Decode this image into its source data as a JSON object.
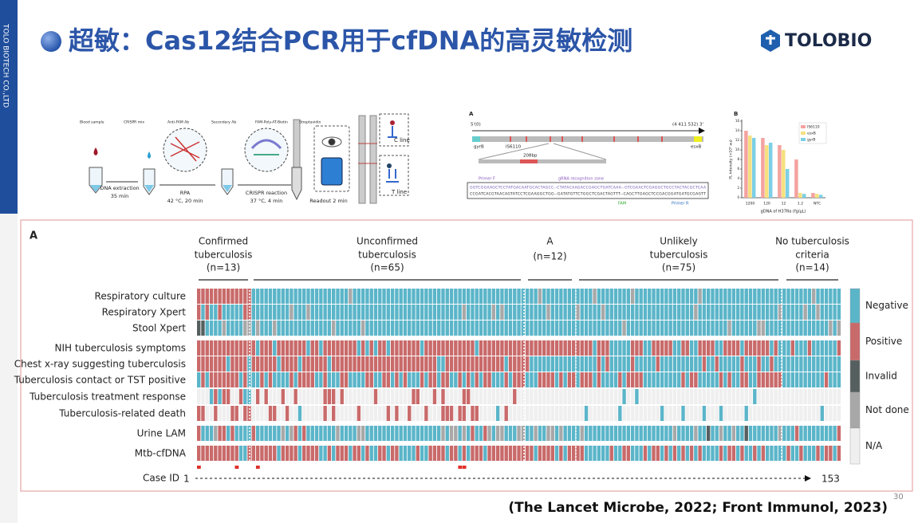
{
  "sidebar": "TOLO BIOTECH CO.,LTD",
  "title": "超敏：Cas12结合PCR用于cfDNA的高灵敏检测",
  "logo": "TOLOBIO",
  "page_number": "30",
  "citation": "(The Lancet Microbe, 2022; Front Immunol, 2023)",
  "workflow": {
    "legend": [
      "Blood sample",
      "CRISPR mix",
      "Anti-FAM Ab",
      "Secondary Ab",
      "FAM-Poly-AT-Biotin",
      "Streptavidin"
    ],
    "steps": [
      {
        "label": "DNA extraction",
        "detail": "35 min"
      },
      {
        "label": "RPA",
        "detail": "42 °C, 20 min"
      },
      {
        "label": "CRISPR reaction",
        "detail": "37 °C, 4 min"
      },
      {
        "label": "Readout 2 min"
      }
    ],
    "strip_labels": [
      "C line",
      "T line"
    ]
  },
  "genome": {
    "panel": "A",
    "start": "5'(0)",
    "end": "(4 411 532) 3'",
    "genes": [
      "gyrB",
      "IS6110",
      "esxB"
    ],
    "amplicon": "208bp",
    "primer_f": "Primer F",
    "zone": "gRNA recognition zone",
    "sequence": [
      "GGTCGGAAGCTCCTATGACAATGCACTAGCC--CTATACAAGACCGAGCTGATCAAA--GTCGAACTCGAGGCTGCCTACTACGCTCAA",
      "CCGATCACGTAACAGTATCCTCGAAGGCTGG--GATATGTTCTGGCTCGACTAGTTT--CAGCTTGAGCTCCGACGGATGATGCGAGTT"
    ],
    "fam": "FAM",
    "primer_r": "Primer R"
  },
  "bar_chart": {
    "type": "bar",
    "panel": "B",
    "y_label": "PL intensity (×10⁵ au)",
    "x_label": "gDNA of H37Ra (fg/μL)",
    "categories": [
      "1200",
      "120",
      "12",
      "1.2",
      "NTC"
    ],
    "series": [
      {
        "name": "IS6110",
        "color": "#f4a3a0",
        "values": [
          14,
          12.5,
          11,
          8,
          1
        ]
      },
      {
        "name": "esxB",
        "color": "#f5e07f",
        "values": [
          13,
          11,
          10,
          1,
          0.8
        ]
      },
      {
        "name": "gyrB",
        "color": "#7ccfe6",
        "values": [
          12.5,
          11.5,
          6,
          0.8,
          0.6
        ]
      }
    ],
    "ylim": [
      0,
      16
    ],
    "yticks": [
      0,
      2,
      4,
      6,
      8,
      10,
      12,
      14,
      16
    ]
  },
  "heatmap": {
    "panel": "A",
    "groups": [
      {
        "lines": [
          "Confirmed",
          "tuberculosis"
        ],
        "n": "(n=13)"
      },
      {
        "lines": [
          "Unconfirmed",
          "tuberculosis"
        ],
        "n": "(n=65)"
      },
      {
        "lines": [
          "A"
        ],
        "n": "(n=12)"
      },
      {
        "lines": [
          "Unlikely",
          "tuberculosis"
        ],
        "n": "(n=75)"
      },
      {
        "lines": [
          "No tuberculosis",
          "criteria"
        ],
        "n": "(n=14)"
      }
    ],
    "rows": [
      "Respiratory culture",
      "Respiratory Xpert",
      "Stool Xpert",
      "NIH tuberculosis symptoms",
      "Chest x-ray suggesting tuberculosis",
      "Tuberculosis contact or TST positive",
      "Tuberculosis treatment response",
      "Tuberculosis-related death",
      "Urine LAM",
      "Mtb-cfDNA"
    ],
    "legend": [
      "Negative",
      "Positive",
      "Invalid",
      "Not done",
      "N/A"
    ],
    "case_id_label": "Case ID",
    "case_start": "1",
    "case_end": "153"
  }
}
